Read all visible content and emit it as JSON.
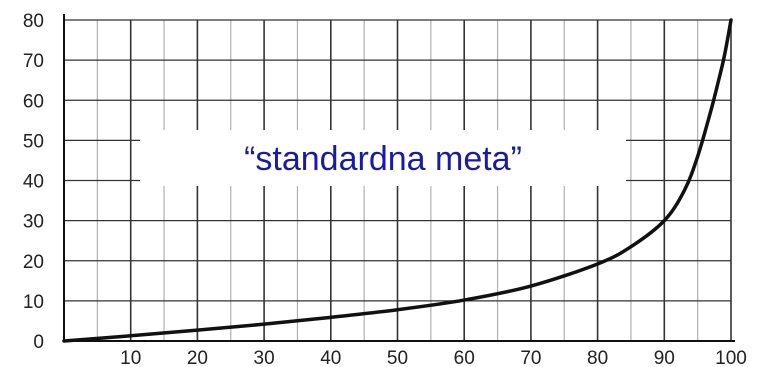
{
  "chart_data": {
    "type": "line",
    "title": "",
    "xlabel": "",
    "ylabel": "",
    "xlim": [
      0,
      100
    ],
    "ylim": [
      0,
      80
    ],
    "x_ticks": [
      10,
      20,
      30,
      40,
      50,
      60,
      70,
      80,
      90,
      100
    ],
    "y_ticks": [
      0,
      10,
      20,
      30,
      40,
      50,
      60,
      70,
      80
    ],
    "grid": true,
    "annotation": "“standardna meta”",
    "series": [
      {
        "x": [
          0,
          10,
          20,
          30,
          40,
          50,
          60,
          70,
          80,
          85,
          90,
          93,
          95,
          97,
          98,
          99,
          100
        ],
        "y": [
          0,
          1.3,
          2.7,
          4.2,
          5.9,
          7.8,
          10.2,
          13.7,
          19.2,
          23.5,
          30.0,
          37.5,
          46.0,
          57.5,
          64.0,
          71.0,
          80.0
        ]
      }
    ]
  },
  "colors": {
    "curve": "#111111",
    "annotation": "#1a1aa8",
    "grid_major": "#333333",
    "grid_minor": "#b0b0b0"
  }
}
